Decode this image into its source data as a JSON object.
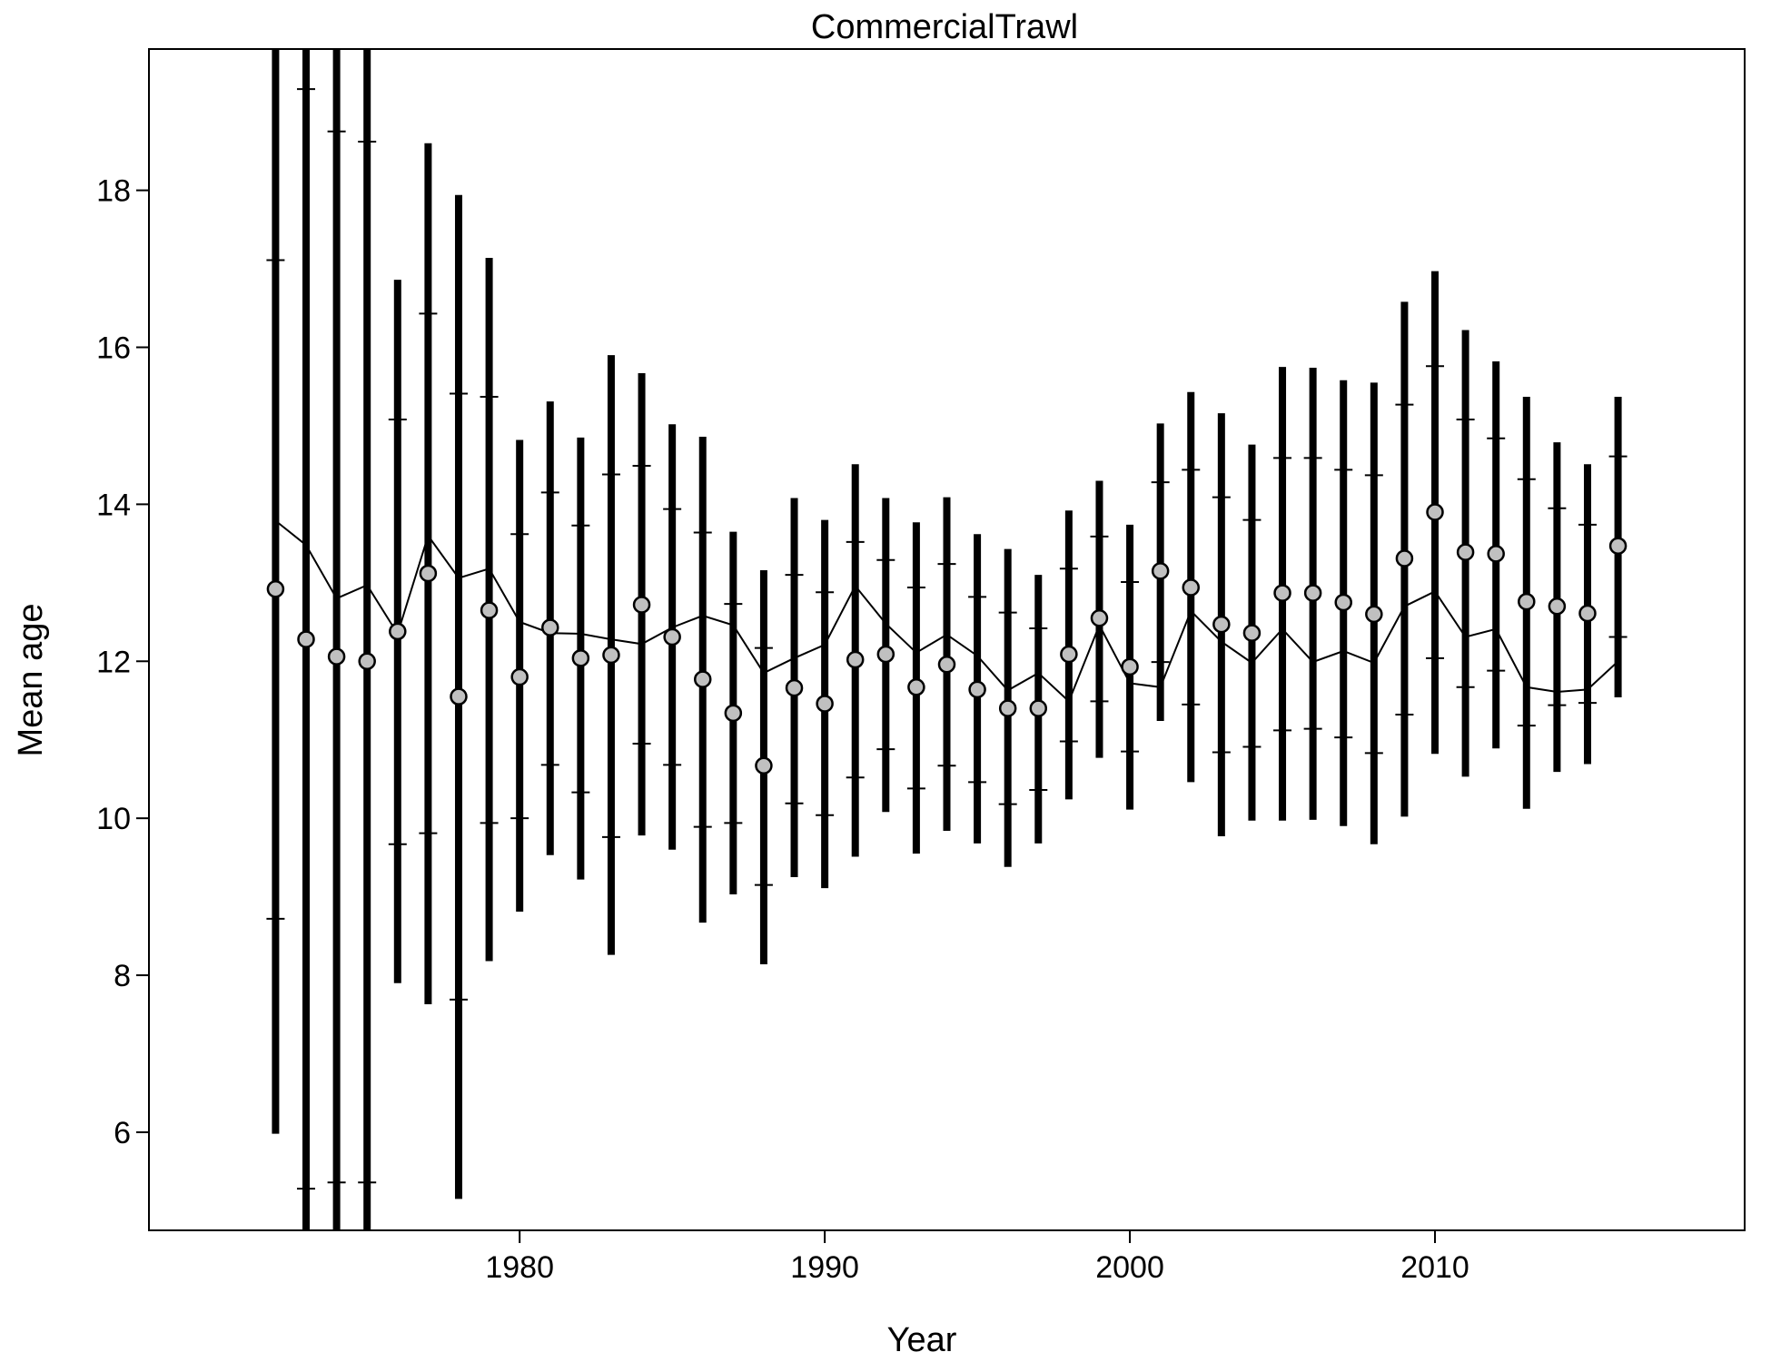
{
  "chart_data": {
    "type": "scatter",
    "title": "CommercialTrawl",
    "xlabel": "Year",
    "ylabel": "Mean age",
    "xlim": [
      1967.85,
      2020.15
    ],
    "ylim": [
      4.75,
      19.8
    ],
    "xticks": [
      1980,
      1990,
      2000,
      2010
    ],
    "yticks": [
      6,
      8,
      10,
      12,
      14,
      16,
      18
    ],
    "grid": false,
    "legend": "none",
    "series": [
      {
        "role": "observed",
        "style": "grey-circles-with-thick-black-interval-bars",
        "x": [
          1972,
          1973,
          1974,
          1975,
          1976,
          1977,
          1978,
          1979,
          1980,
          1981,
          1982,
          1983,
          1984,
          1985,
          1986,
          1987,
          1988,
          1989,
          1990,
          1991,
          1992,
          1993,
          1994,
          1995,
          1996,
          1997,
          1998,
          1999,
          2000,
          2001,
          2002,
          2003,
          2004,
          2005,
          2006,
          2007,
          2008,
          2009,
          2010,
          2011,
          2012,
          2013,
          2014,
          2015,
          2016
        ],
        "values": [
          12.92,
          12.28,
          12.06,
          12.0,
          12.38,
          13.12,
          11.55,
          12.65,
          11.8,
          12.43,
          12.04,
          12.08,
          12.72,
          12.31,
          11.77,
          11.34,
          10.67,
          11.66,
          11.46,
          12.02,
          12.09,
          11.67,
          11.96,
          11.64,
          11.4,
          11.4,
          12.09,
          12.55,
          11.93,
          13.15,
          12.94,
          12.47,
          12.36,
          12.87,
          12.87,
          12.75,
          12.6,
          13.31,
          13.9,
          13.39,
          13.37,
          12.76,
          12.7,
          12.61,
          13.47
        ],
        "lower_outer": [
          5.98,
          4.75,
          4.75,
          4.75,
          7.9,
          7.63,
          5.15,
          8.18,
          8.81,
          9.53,
          9.22,
          8.26,
          9.78,
          9.6,
          8.67,
          9.03,
          8.14,
          9.25,
          9.11,
          9.51,
          10.08,
          9.55,
          9.84,
          9.68,
          9.38,
          9.68,
          10.24,
          10.77,
          10.11,
          11.24,
          10.46,
          9.77,
          9.97,
          9.97,
          9.98,
          9.9,
          9.67,
          10.02,
          10.82,
          10.53,
          10.89,
          10.12,
          10.59,
          10.69,
          11.54
        ],
        "upper_outer": [
          19.8,
          19.8,
          19.8,
          19.8,
          16.86,
          18.6,
          17.94,
          17.14,
          14.82,
          15.31,
          14.85,
          15.9,
          15.67,
          15.02,
          14.86,
          13.65,
          13.16,
          14.08,
          13.8,
          14.51,
          14.08,
          13.77,
          14.09,
          13.62,
          13.43,
          13.1,
          13.92,
          14.3,
          13.74,
          15.03,
          15.43,
          15.16,
          14.76,
          15.75,
          15.74,
          15.58,
          15.55,
          16.58,
          16.97,
          16.22,
          15.82,
          15.37,
          14.79,
          14.51,
          15.37
        ],
        "lower_inner": [
          8.72,
          5.28,
          5.36,
          5.36,
          9.67,
          9.81,
          7.69,
          9.94,
          10.0,
          10.68,
          10.33,
          9.76,
          10.95,
          10.68,
          9.89,
          9.94,
          9.15,
          10.19,
          10.04,
          10.52,
          10.88,
          10.38,
          10.67,
          10.46,
          10.18,
          10.36,
          10.98,
          11.49,
          10.85,
          11.99,
          11.45,
          10.84,
          10.91,
          11.12,
          11.14,
          11.03,
          10.83,
          11.32,
          12.04,
          11.67,
          11.88,
          11.18,
          11.44,
          11.47,
          12.31
        ],
        "upper_inner": [
          17.11,
          19.29,
          18.75,
          18.62,
          15.08,
          16.43,
          15.41,
          15.37,
          13.62,
          14.15,
          13.73,
          14.38,
          14.49,
          13.94,
          13.64,
          12.73,
          12.17,
          13.1,
          12.88,
          13.52,
          13.29,
          12.94,
          13.24,
          12.82,
          12.62,
          12.42,
          13.18,
          13.59,
          13.01,
          14.28,
          14.44,
          14.09,
          13.8,
          14.59,
          14.59,
          14.44,
          14.37,
          15.27,
          15.76,
          15.08,
          14.84,
          14.32,
          13.95,
          13.74,
          14.61
        ]
      },
      {
        "role": "expected",
        "style": "thin-black-line",
        "x": [
          1972,
          1973,
          1974,
          1975,
          1976,
          1977,
          1978,
          1979,
          1980,
          1981,
          1982,
          1983,
          1984,
          1985,
          1986,
          1987,
          1988,
          1989,
          1990,
          1991,
          1992,
          1993,
          1994,
          1995,
          1996,
          1997,
          1998,
          1999,
          2000,
          2001,
          2002,
          2003,
          2004,
          2005,
          2006,
          2007,
          2008,
          2009,
          2010,
          2011,
          2012,
          2013,
          2014,
          2015,
          2016
        ],
        "values": [
          13.79,
          13.48,
          12.8,
          12.97,
          12.35,
          13.6,
          13.06,
          13.18,
          12.5,
          12.36,
          12.35,
          12.28,
          12.22,
          12.43,
          12.58,
          12.46,
          11.85,
          12.04,
          12.21,
          12.96,
          12.48,
          12.11,
          12.34,
          12.07,
          11.63,
          11.85,
          11.49,
          12.46,
          11.72,
          11.67,
          12.64,
          12.25,
          11.98,
          12.41,
          11.99,
          12.13,
          11.98,
          12.7,
          12.89,
          12.31,
          12.41,
          11.67,
          11.61,
          11.64,
          12.0
        ]
      }
    ],
    "colors": {
      "points_fill": "#c0c0c0",
      "bars": "#000000",
      "line": "#000000",
      "frame": "#000000"
    }
  }
}
